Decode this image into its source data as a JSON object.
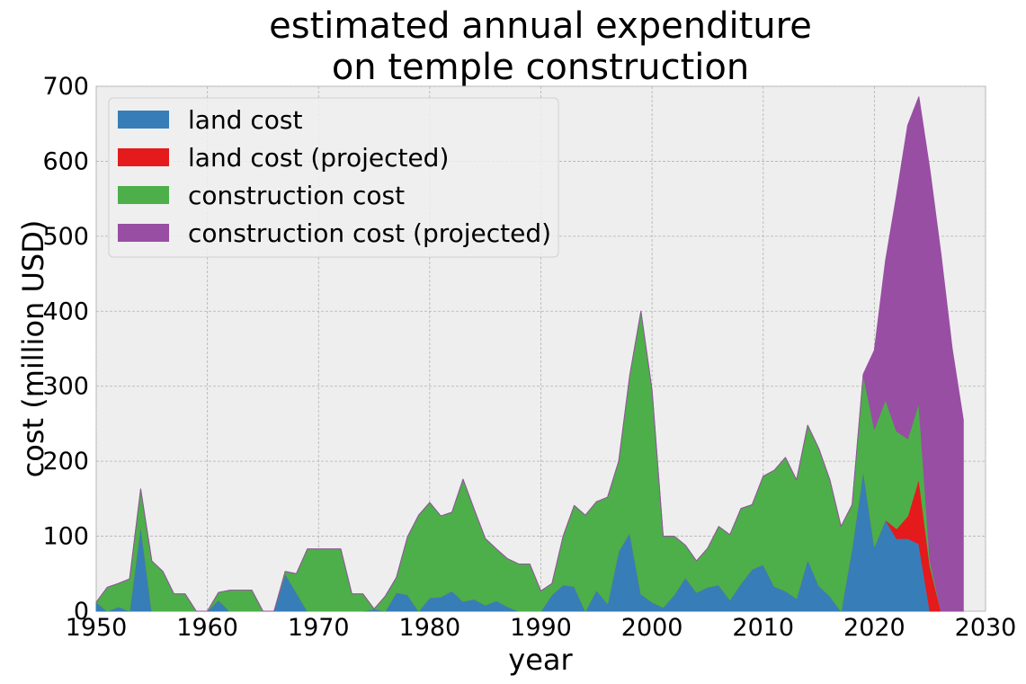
{
  "chart_data": {
    "type": "area",
    "stacked": true,
    "title": "estimated annual expenditure\non temple construction",
    "xlabel": "year",
    "ylabel": "cost (million USD)",
    "xlim": [
      1950,
      2030
    ],
    "ylim": [
      0,
      700
    ],
    "xticks": [
      1950,
      1960,
      1970,
      1980,
      1990,
      2000,
      2010,
      2020,
      2030
    ],
    "yticks": [
      0,
      100,
      200,
      300,
      400,
      500,
      600,
      700
    ],
    "grid": true,
    "legend_position": "top-left",
    "x": [
      1950,
      1951,
      1952,
      1953,
      1954,
      1955,
      1956,
      1957,
      1958,
      1959,
      1960,
      1961,
      1962,
      1963,
      1964,
      1965,
      1966,
      1967,
      1968,
      1969,
      1970,
      1971,
      1972,
      1973,
      1974,
      1975,
      1976,
      1977,
      1978,
      1979,
      1980,
      1981,
      1982,
      1983,
      1984,
      1985,
      1986,
      1987,
      1988,
      1989,
      1990,
      1991,
      1992,
      1993,
      1994,
      1995,
      1996,
      1997,
      1998,
      1999,
      2000,
      2001,
      2002,
      2003,
      2004,
      2005,
      2006,
      2007,
      2008,
      2009,
      2010,
      2011,
      2012,
      2013,
      2014,
      2015,
      2016,
      2017,
      2018,
      2019,
      2020,
      2021,
      2022,
      2023,
      2024,
      2025,
      2026,
      2027,
      2028
    ],
    "series": [
      {
        "name": "land cost",
        "color": "#377eb8",
        "values": [
          12,
          0,
          6,
          0,
          115,
          0,
          0,
          0,
          0,
          0,
          0,
          15,
          0,
          0,
          0,
          0,
          0,
          50,
          25,
          0,
          0,
          0,
          0,
          0,
          0,
          3,
          0,
          25,
          22,
          0,
          18,
          19,
          27,
          13,
          16,
          8,
          14,
          6,
          0,
          0,
          0,
          22,
          35,
          33,
          0,
          28,
          10,
          80,
          105,
          23,
          12,
          5,
          22,
          45,
          25,
          32,
          35,
          15,
          37,
          56,
          62,
          33,
          27,
          17,
          69,
          34,
          20,
          0,
          85,
          188,
          86,
          122,
          97,
          97,
          90,
          0,
          0,
          0,
          0
        ]
      },
      {
        "name": "land cost (projected)",
        "color": "#e41a1c",
        "values": [
          0,
          0,
          0,
          0,
          0,
          0,
          0,
          0,
          0,
          0,
          0,
          0,
          0,
          0,
          0,
          0,
          0,
          0,
          0,
          0,
          0,
          0,
          0,
          0,
          0,
          0,
          0,
          0,
          0,
          0,
          0,
          0,
          0,
          0,
          0,
          0,
          0,
          0,
          0,
          0,
          0,
          0,
          0,
          0,
          0,
          0,
          0,
          0,
          0,
          0,
          0,
          0,
          0,
          0,
          0,
          0,
          0,
          0,
          0,
          0,
          0,
          0,
          0,
          0,
          0,
          0,
          0,
          0,
          0,
          0,
          0,
          0,
          13,
          30,
          87,
          60,
          0,
          0,
          0
        ]
      },
      {
        "name": "construction cost",
        "color": "#4daf4a",
        "values": [
          0,
          32,
          31,
          43,
          48,
          67,
          53,
          23,
          23,
          0,
          0,
          10,
          28,
          28,
          28,
          0,
          0,
          3,
          25,
          83,
          83,
          83,
          83,
          23,
          23,
          0,
          20,
          20,
          77,
          128,
          127,
          108,
          105,
          163,
          120,
          89,
          69,
          64,
          63,
          63,
          27,
          15,
          65,
          108,
          128,
          118,
          142,
          120,
          210,
          377,
          283,
          95,
          78,
          43,
          42,
          52,
          78,
          87,
          100,
          86,
          118,
          155,
          178,
          158,
          179,
          183,
          155,
          113,
          57,
          128,
          157,
          160,
          130,
          103,
          101,
          8,
          0,
          0,
          0
        ]
      },
      {
        "name": "construction cost (projected)",
        "color": "#984ea3",
        "values": [
          0,
          0,
          0,
          0,
          0,
          0,
          0,
          0,
          0,
          0,
          0,
          0,
          0,
          0,
          0,
          0,
          0,
          0,
          0,
          0,
          0,
          0,
          0,
          0,
          0,
          0,
          0,
          0,
          0,
          0,
          0,
          0,
          0,
          0,
          0,
          0,
          0,
          0,
          0,
          0,
          0,
          0,
          0,
          0,
          0,
          0,
          0,
          0,
          0,
          0,
          0,
          0,
          0,
          0,
          0,
          0,
          0,
          0,
          0,
          0,
          0,
          0,
          0,
          0,
          0,
          0,
          0,
          0,
          0,
          0,
          105,
          185,
          315,
          418,
          408,
          520,
          475,
          350,
          255
        ]
      }
    ]
  }
}
